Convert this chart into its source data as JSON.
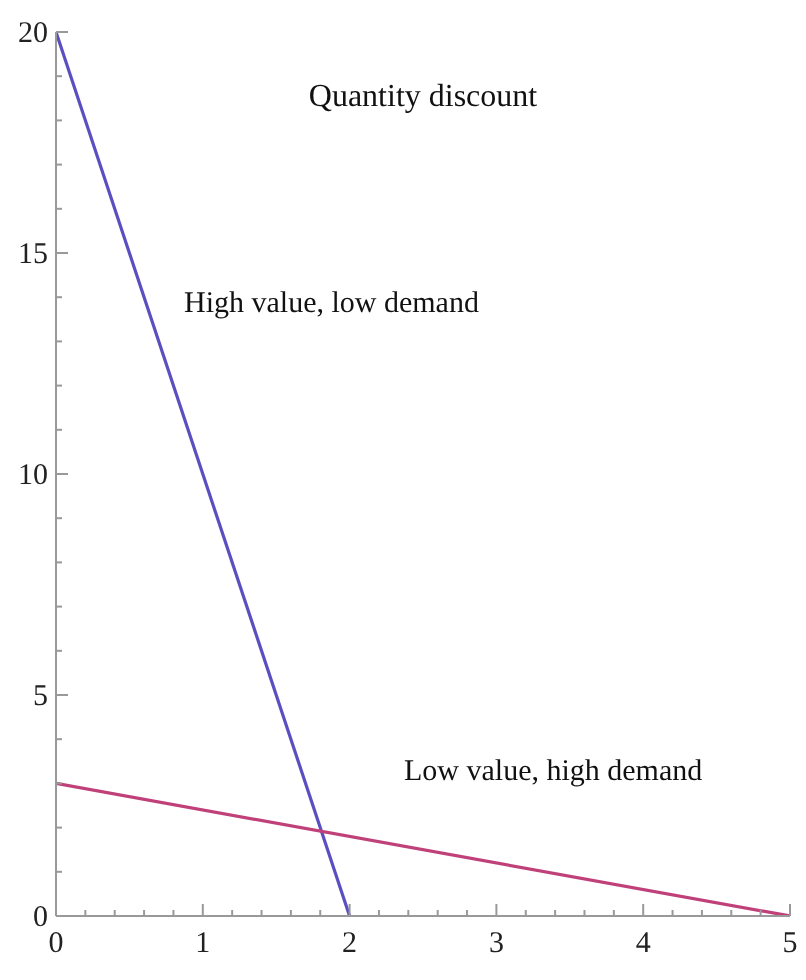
{
  "chart_data": {
    "type": "line",
    "title": "Quantity discount",
    "series": [
      {
        "color": "#5a4fc0",
        "x": [
          0,
          2
        ],
        "values": [
          20,
          0
        ]
      },
      {
        "color": "#c0407a",
        "x": [
          0,
          5
        ],
        "values": [
          3,
          0
        ]
      }
    ],
    "annotations": [
      "High value, low demand",
      "Low value, high demand"
    ],
    "xlim": [
      0,
      5
    ],
    "xticks": [
      0,
      {
        "value": 0.2,
        "label": null
      },
      {
        "value": 0.4,
        "label": null
      },
      {
        "value": 0.6,
        "label": null
      },
      {
        "value": 0.8,
        "label": null
      },
      1,
      {
        "value": 1.2,
        "label": null
      },
      {
        "value": 1.4,
        "label": null
      },
      {
        "value": 1.6,
        "label": null
      },
      {
        "value": 1.8,
        "label": null
      },
      2,
      {
        "value": 2.2,
        "label": null
      },
      {
        "value": 2.4,
        "label": null
      },
      {
        "value": 2.6,
        "label": null
      },
      {
        "value": 2.8,
        "label": null
      },
      3,
      {
        "value": 3.2,
        "label": null
      },
      {
        "value": 3.4,
        "label": null
      },
      {
        "value": 3.6,
        "label": null
      },
      {
        "value": 3.8,
        "label": null
      },
      4,
      {
        "value": 4.2,
        "label": null
      },
      {
        "value": 4.4,
        "label": null
      },
      {
        "value": 4.6,
        "label": null
      },
      {
        "value": 4.8,
        "label": null
      },
      5
    ],
    "ylim": [
      0,
      20
    ],
    "yticks": [
      0,
      {
        "value": 1,
        "label": null
      },
      {
        "value": 2,
        "label": null
      },
      {
        "value": 3,
        "label": null
      },
      {
        "value": 4,
        "label": null
      },
      5,
      {
        "value": 6,
        "label": null
      },
      {
        "value": 7,
        "label": null
      },
      {
        "value": 8,
        "label": null
      },
      {
        "value": 9,
        "label": null
      },
      10,
      {
        "value": 11,
        "label": null
      },
      {
        "value": 12,
        "label": null
      },
      {
        "value": 13,
        "label": null
      },
      {
        "value": 14,
        "label": null
      },
      15,
      {
        "value": 16,
        "label": null
      },
      {
        "value": 17,
        "label": null
      },
      {
        "value": 18,
        "label": null
      },
      {
        "value": 19,
        "label": null
      },
      20
    ],
    "grid": false,
    "legend": false,
    "marker": "none",
    "line_style": "solid"
  }
}
